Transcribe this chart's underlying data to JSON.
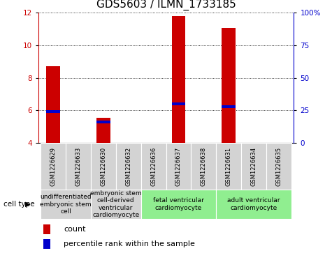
{
  "title": "GDS5603 / ILMN_1733185",
  "samples": [
    "GSM1226629",
    "GSM1226633",
    "GSM1226630",
    "GSM1226632",
    "GSM1226636",
    "GSM1226637",
    "GSM1226638",
    "GSM1226631",
    "GSM1226634",
    "GSM1226635"
  ],
  "red_values": [
    8.7,
    4.0,
    5.55,
    4.0,
    4.0,
    11.8,
    4.0,
    11.05,
    4.0,
    4.0
  ],
  "blue_values": [
    5.85,
    4.0,
    5.2,
    4.0,
    4.0,
    6.3,
    4.0,
    6.15,
    4.0,
    4.0
  ],
  "blue_heights": [
    0.18,
    0.0,
    0.18,
    0.0,
    0.0,
    0.18,
    0.0,
    0.18,
    0.0,
    0.0
  ],
  "ylim_left": [
    4,
    12
  ],
  "ylim_right": [
    0,
    100
  ],
  "yticks_left": [
    4,
    6,
    8,
    10,
    12
  ],
  "yticks_right": [
    0,
    25,
    50,
    75,
    100
  ],
  "cell_groups": [
    {
      "label": "undifferentiated\nembryonic stem\ncell",
      "indices": [
        0,
        1
      ],
      "color": "#d3d3d3"
    },
    {
      "label": "embryonic stem\ncell-derived\nventricular\ncardiomyocyte",
      "indices": [
        2,
        3
      ],
      "color": "#d3d3d3"
    },
    {
      "label": "fetal ventricular\ncardiomyocyte",
      "indices": [
        4,
        5,
        6
      ],
      "color": "#90ee90"
    },
    {
      "label": "adult ventricular\ncardiomyocyte",
      "indices": [
        7,
        8,
        9
      ],
      "color": "#90ee90"
    }
  ],
  "sample_box_color": "#d3d3d3",
  "bar_color_red": "#cc0000",
  "bar_color_blue": "#0000cc",
  "bar_width": 0.55,
  "legend_count_label": "count",
  "legend_percentile_label": "percentile rank within the sample",
  "cell_type_label": "cell type",
  "background_color": "#ffffff",
  "left_axis_color": "#cc0000",
  "right_axis_color": "#0000cc",
  "title_fontsize": 11,
  "tick_fontsize": 7.5,
  "sample_fontsize": 6,
  "legend_fontsize": 8,
  "cell_label_fontsize": 6.5
}
